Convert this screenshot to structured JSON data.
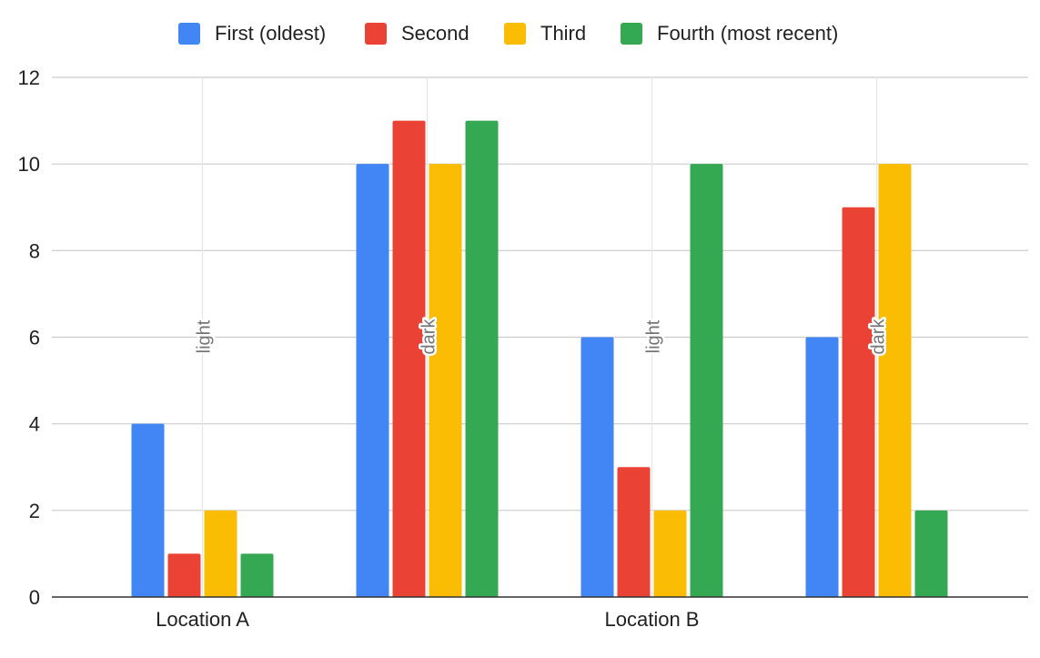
{
  "chart_data": {
    "type": "bar",
    "title": "",
    "xlabel": "",
    "ylabel": "",
    "ylim": [
      0,
      12
    ],
    "yticks": [
      0,
      2,
      4,
      6,
      8,
      10,
      12
    ],
    "grid": true,
    "legend_position": "top",
    "groups": [
      {
        "label": "Location A",
        "subgroups": [
          "light",
          "dark"
        ]
      },
      {
        "label": "Location B",
        "subgroups": [
          "light",
          "dark"
        ]
      }
    ],
    "categories": [
      "Location A light",
      "Location A dark",
      "Location B light",
      "Location B dark"
    ],
    "annotations": [
      "light",
      "dark",
      "light",
      "dark"
    ],
    "series": [
      {
        "name": "First (oldest)",
        "color": "#4285F4",
        "values": [
          4,
          10,
          6,
          6
        ]
      },
      {
        "name": "Second",
        "color": "#EA4335",
        "values": [
          1,
          11,
          3,
          9
        ]
      },
      {
        "name": "Third",
        "color": "#FBBC04",
        "values": [
          2,
          10,
          2,
          10
        ]
      },
      {
        "name": "Fourth (most recent)",
        "color": "#34A853",
        "values": [
          1,
          11,
          10,
          2
        ]
      }
    ]
  }
}
